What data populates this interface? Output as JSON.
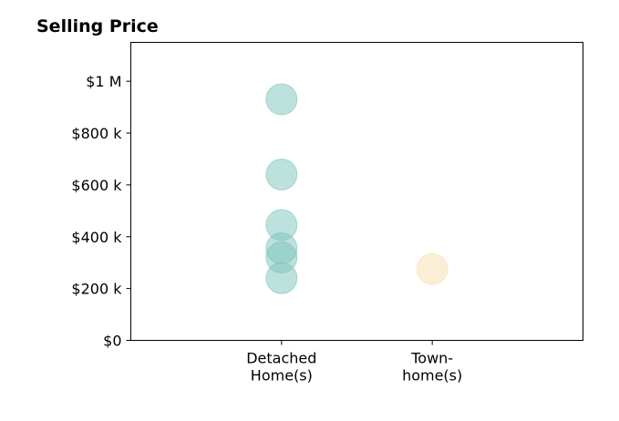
{
  "chart_data": {
    "type": "scatter",
    "title": "Selling Price",
    "xlabel": "",
    "ylabel": "",
    "categories": [
      "Detached\nHome(s)",
      "Town-\nhome(s)"
    ],
    "ylim": [
      0,
      1150000
    ],
    "yticks": [
      {
        "value": 0,
        "label": "$0"
      },
      {
        "value": 200000,
        "label": "$200 k"
      },
      {
        "value": 400000,
        "label": "$400 k"
      },
      {
        "value": 600000,
        "label": "$600 k"
      },
      {
        "value": 800000,
        "label": "$800 k"
      },
      {
        "value": 1000000,
        "label": "$1 M"
      }
    ],
    "grid": false,
    "series": [
      {
        "category": "Detached\nHome(s)",
        "color": "#7cc4bb",
        "values": [
          930000,
          640000,
          445000,
          355000,
          320000,
          240000
        ]
      },
      {
        "category": "Town-\nhome(s)",
        "color": "#f7deb0",
        "values": [
          275000
        ]
      }
    ]
  }
}
